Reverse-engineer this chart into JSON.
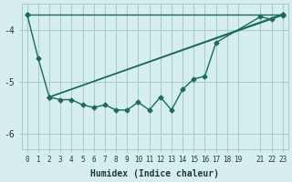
{
  "xlabel": "Humidex (Indice chaleur)",
  "ylabel": "",
  "bg_color": "#d6eeee",
  "grid_color": "#aacccc",
  "line_color": "#1a6b5a",
  "xlim": [
    -0.5,
    23.5
  ],
  "ylim": [
    -6.3,
    -3.5
  ],
  "yticks": [
    -6,
    -5,
    -4
  ],
  "xticks": [
    0,
    1,
    2,
    3,
    4,
    5,
    6,
    7,
    8,
    9,
    10,
    11,
    12,
    13,
    14,
    15,
    16,
    17,
    18,
    19,
    21,
    22,
    23
  ],
  "xtick_labels": [
    "0",
    "1",
    "2",
    "3",
    "4",
    "5",
    "6",
    "7",
    "8",
    "9",
    "10",
    "11",
    "12",
    "13",
    "14",
    "15",
    "16",
    "17",
    "18",
    "19",
    "21",
    "22",
    "23"
  ],
  "series": [
    {
      "x": [
        0,
        1,
        2,
        3,
        4,
        5,
        6,
        7,
        8,
        9,
        10,
        11,
        12,
        13,
        14,
        15,
        16,
        17,
        21,
        22,
        23
      ],
      "y": [
        -3.7,
        -4.55,
        -5.3,
        -5.35,
        -5.35,
        -5.45,
        -5.5,
        -5.45,
        -5.55,
        -5.55,
        -5.4,
        -5.55,
        -5.3,
        -5.55,
        -5.15,
        -4.95,
        -4.9,
        -4.25,
        -3.75,
        -3.8,
        -3.7
      ]
    },
    {
      "x": [
        0,
        23
      ],
      "y": [
        -3.7,
        -3.7
      ]
    },
    {
      "x": [
        2,
        23
      ],
      "y": [
        -5.3,
        -3.7
      ]
    },
    {
      "x": [
        2,
        23
      ],
      "y": [
        -5.3,
        -3.72
      ]
    }
  ]
}
